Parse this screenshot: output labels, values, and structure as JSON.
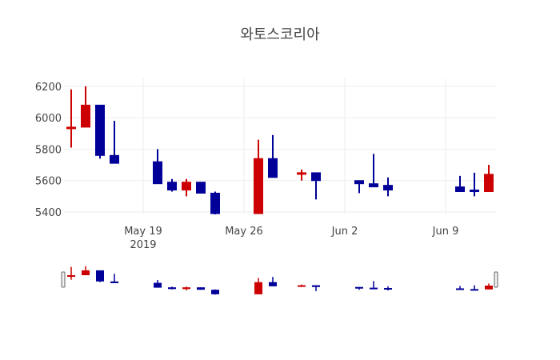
{
  "chart_data": {
    "type": "candlestick",
    "title": "와토스코리아",
    "xlabel": "",
    "ylabel": "",
    "ylim": [
      5385,
      6250
    ],
    "xlim": [
      "2019-05-13T12:00",
      "2019-06-12T12:00"
    ],
    "grid": true,
    "range_slider": true,
    "increasing_color": "#cc0000",
    "decreasing_color": "#000099",
    "y_ticks": [
      5400,
      5600,
      5800,
      6000,
      6200
    ],
    "y_tick_labels": [
      "5400",
      "5600",
      "5800",
      "6000",
      "6200"
    ],
    "x_ticks": [
      "2019-05-19",
      "2019-05-26",
      "2019-06-02",
      "2019-06-09"
    ],
    "x_tick_labels": [
      "May 19",
      "May 26",
      "Jun 2",
      "Jun 9"
    ],
    "x_year_label": "2019",
    "candles": [
      {
        "date": "2019-05-14",
        "open": 5930,
        "high": 6180,
        "low": 5810,
        "close": 5940
      },
      {
        "date": "2019-05-15",
        "open": 5940,
        "high": 6200,
        "low": 5940,
        "close": 6080
      },
      {
        "date": "2019-05-16",
        "open": 6080,
        "high": 6080,
        "low": 5740,
        "close": 5760
      },
      {
        "date": "2019-05-17",
        "open": 5760,
        "high": 5980,
        "low": 5710,
        "close": 5710
      },
      {
        "date": "2019-05-20",
        "open": 5720,
        "high": 5800,
        "low": 5580,
        "close": 5580
      },
      {
        "date": "2019-05-21",
        "open": 5590,
        "high": 5610,
        "low": 5530,
        "close": 5540
      },
      {
        "date": "2019-05-22",
        "open": 5540,
        "high": 5610,
        "low": 5500,
        "close": 5590
      },
      {
        "date": "2019-05-23",
        "open": 5590,
        "high": 5590,
        "low": 5520,
        "close": 5520
      },
      {
        "date": "2019-05-24",
        "open": 5520,
        "high": 5530,
        "low": 5380,
        "close": 5390
      },
      {
        "date": "2019-05-27",
        "open": 5390,
        "high": 5860,
        "low": 5390,
        "close": 5740
      },
      {
        "date": "2019-05-28",
        "open": 5740,
        "high": 5890,
        "low": 5620,
        "close": 5620
      },
      {
        "date": "2019-05-30",
        "open": 5640,
        "high": 5670,
        "low": 5600,
        "close": 5650
      },
      {
        "date": "2019-05-31",
        "open": 5650,
        "high": 5650,
        "low": 5480,
        "close": 5600
      },
      {
        "date": "2019-06-03",
        "open": 5600,
        "high": 5600,
        "low": 5520,
        "close": 5580
      },
      {
        "date": "2019-06-04",
        "open": 5580,
        "high": 5770,
        "low": 5560,
        "close": 5560
      },
      {
        "date": "2019-06-05",
        "open": 5570,
        "high": 5620,
        "low": 5500,
        "close": 5540
      },
      {
        "date": "2019-06-10",
        "open": 5560,
        "high": 5630,
        "low": 5530,
        "close": 5530
      },
      {
        "date": "2019-06-11",
        "open": 5540,
        "high": 5650,
        "low": 5500,
        "close": 5530
      },
      {
        "date": "2019-06-12",
        "open": 5530,
        "high": 5700,
        "low": 5530,
        "close": 5640
      }
    ]
  }
}
